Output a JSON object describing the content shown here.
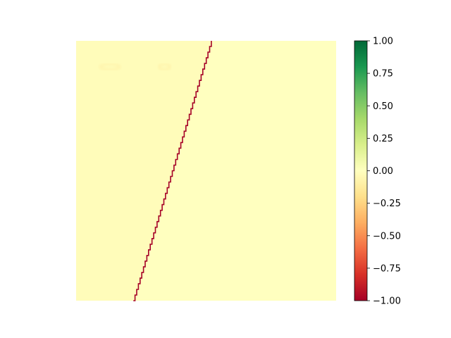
{
  "chart_data": {
    "type": "heatmap",
    "title": "",
    "xlabel": "",
    "ylabel": "",
    "axes_visible": false,
    "colormap": "RdYlGn",
    "colormap_stops": [
      "#a50026",
      "#d73027",
      "#f46d43",
      "#fdae61",
      "#fee08b",
      "#ffffbf",
      "#d9ef8b",
      "#a6d96a",
      "#66bd63",
      "#1a9850",
      "#006837"
    ],
    "value_range": [
      -1.0,
      1.0
    ],
    "background_value": 0.0,
    "left_region_value": -0.02,
    "edge_value": -1.0,
    "edge_line": {
      "x_top": 0.52,
      "x_bottom": 0.22,
      "description": "near-vertical red boundary running from top to bottom"
    },
    "faint_blobs": [
      {
        "x": 0.13,
        "y": 0.1,
        "value": -0.15
      },
      {
        "x": 0.34,
        "y": 0.1,
        "value": -0.15
      }
    ],
    "colorbar": {
      "ticks": [
        1.0,
        0.75,
        0.5,
        0.25,
        0.0,
        -0.25,
        -0.5,
        -0.75,
        -1.0
      ],
      "tick_labels": [
        "1.00",
        "0.75",
        "0.50",
        "0.25",
        "0.00",
        "−0.25",
        "−0.50",
        "−0.75",
        "−1.00"
      ]
    }
  }
}
